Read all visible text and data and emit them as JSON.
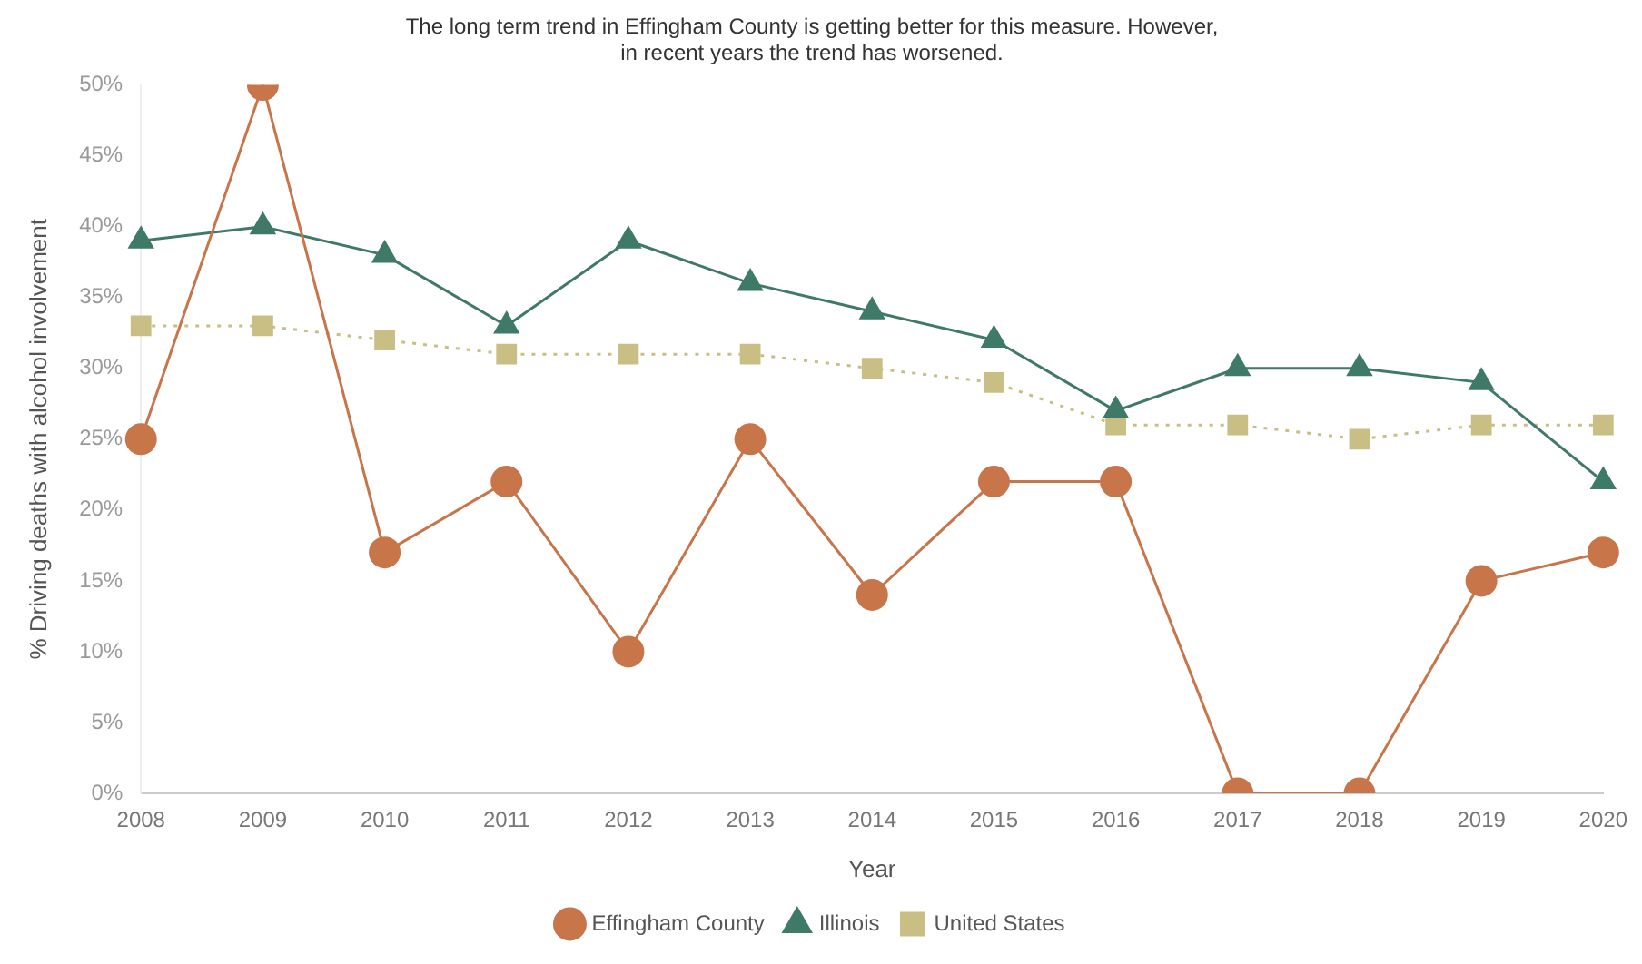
{
  "chart_data": {
    "type": "line",
    "title": "The long term trend in Effingham County is getting better for this measure. However,\nin recent years the trend has worsened.",
    "xlabel": "Year",
    "ylabel": "% Driving deaths with alcohol involvement",
    "categories": [
      "2008",
      "2009",
      "2010",
      "2011",
      "2012",
      "2013",
      "2014",
      "2015",
      "2016",
      "2017",
      "2018",
      "2019",
      "2020"
    ],
    "ylim": [
      0,
      50
    ],
    "yticks": [
      {
        "value": 0,
        "label": "0%"
      },
      {
        "value": 5,
        "label": "5%"
      },
      {
        "value": 10,
        "label": "10%"
      },
      {
        "value": 15,
        "label": "15%"
      },
      {
        "value": 20,
        "label": "20%"
      },
      {
        "value": 25,
        "label": "25%"
      },
      {
        "value": 30,
        "label": "30%"
      },
      {
        "value": 35,
        "label": "35%"
      },
      {
        "value": 40,
        "label": "40%"
      },
      {
        "value": 45,
        "label": "45%"
      },
      {
        "value": 50,
        "label": "50%"
      }
    ],
    "grid": false,
    "legend": "bottom",
    "series": [
      {
        "name": "Effingham County",
        "color": "#c8754a",
        "marker": "circle",
        "line_style": "solid",
        "values": [
          25,
          50,
          17,
          22,
          10,
          25,
          14,
          22,
          22,
          0,
          0,
          15,
          17
        ]
      },
      {
        "name": "Illinois",
        "color": "#3f7a68",
        "marker": "triangle",
        "line_style": "solid",
        "values": [
          39,
          40,
          38,
          33,
          39,
          36,
          34,
          32,
          27,
          30,
          30,
          29,
          22
        ]
      },
      {
        "name": "United States",
        "color": "#c9bf84",
        "marker": "square",
        "line_style": "dotted",
        "values": [
          33,
          33,
          32,
          31,
          31,
          31,
          30,
          29,
          26,
          26,
          25,
          26,
          26
        ]
      }
    ]
  }
}
